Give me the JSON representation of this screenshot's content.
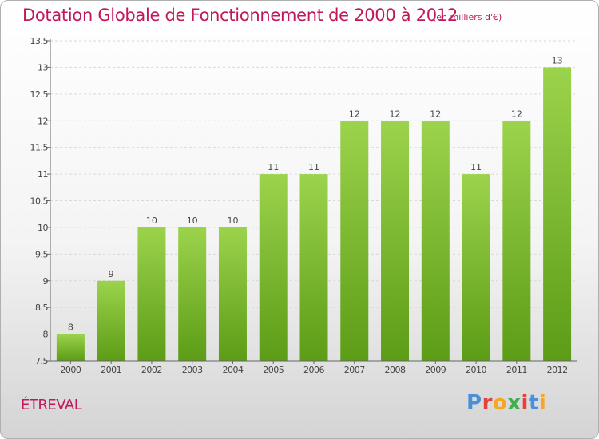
{
  "title": "Dotation Globale de Fonctionnement de 2000 à 2012",
  "subtitle": "(en milliers d'€)",
  "town": "ÉTREVAL",
  "logo": {
    "text": "Proxiti",
    "colors": [
      "#4a8fd8",
      "#e5413c",
      "#f5a623",
      "#3fb04e",
      "#e5413c",
      "#4a8fd8",
      "#f5a623"
    ]
  },
  "colors": {
    "title": "#c0185a",
    "bar_top": "#9cd34c",
    "bar_bottom": "#5c9c16"
  },
  "chart_data": {
    "type": "bar",
    "title": "Dotation Globale de Fonctionnement de 2000 à 2012",
    "subtitle": "(en milliers d'€)",
    "categories": [
      "2000",
      "2001",
      "2002",
      "2003",
      "2004",
      "2005",
      "2006",
      "2007",
      "2008",
      "2009",
      "2010",
      "2011",
      "2012"
    ],
    "values": [
      8,
      9,
      10,
      10,
      10,
      11,
      11,
      12,
      12,
      12,
      11,
      12,
      13
    ],
    "data_labels": [
      "8",
      "9",
      "10",
      "10",
      "10",
      "11",
      "11",
      "12",
      "12",
      "12",
      "11",
      "12",
      "13"
    ],
    "ylim": [
      7.5,
      13.5
    ],
    "yticks": [
      7.5,
      8,
      8.5,
      9,
      9.5,
      10,
      10.5,
      11,
      11.5,
      12,
      12.5,
      13,
      13.5
    ],
    "ytick_labels": [
      "7.5",
      "8",
      "8.5",
      "9",
      "9.5",
      "10",
      "10.5",
      "11",
      "11.5",
      "12",
      "12.5",
      "13",
      "13.5"
    ],
    "xlabel": "",
    "ylabel": "",
    "grid": true,
    "legend": false
  }
}
